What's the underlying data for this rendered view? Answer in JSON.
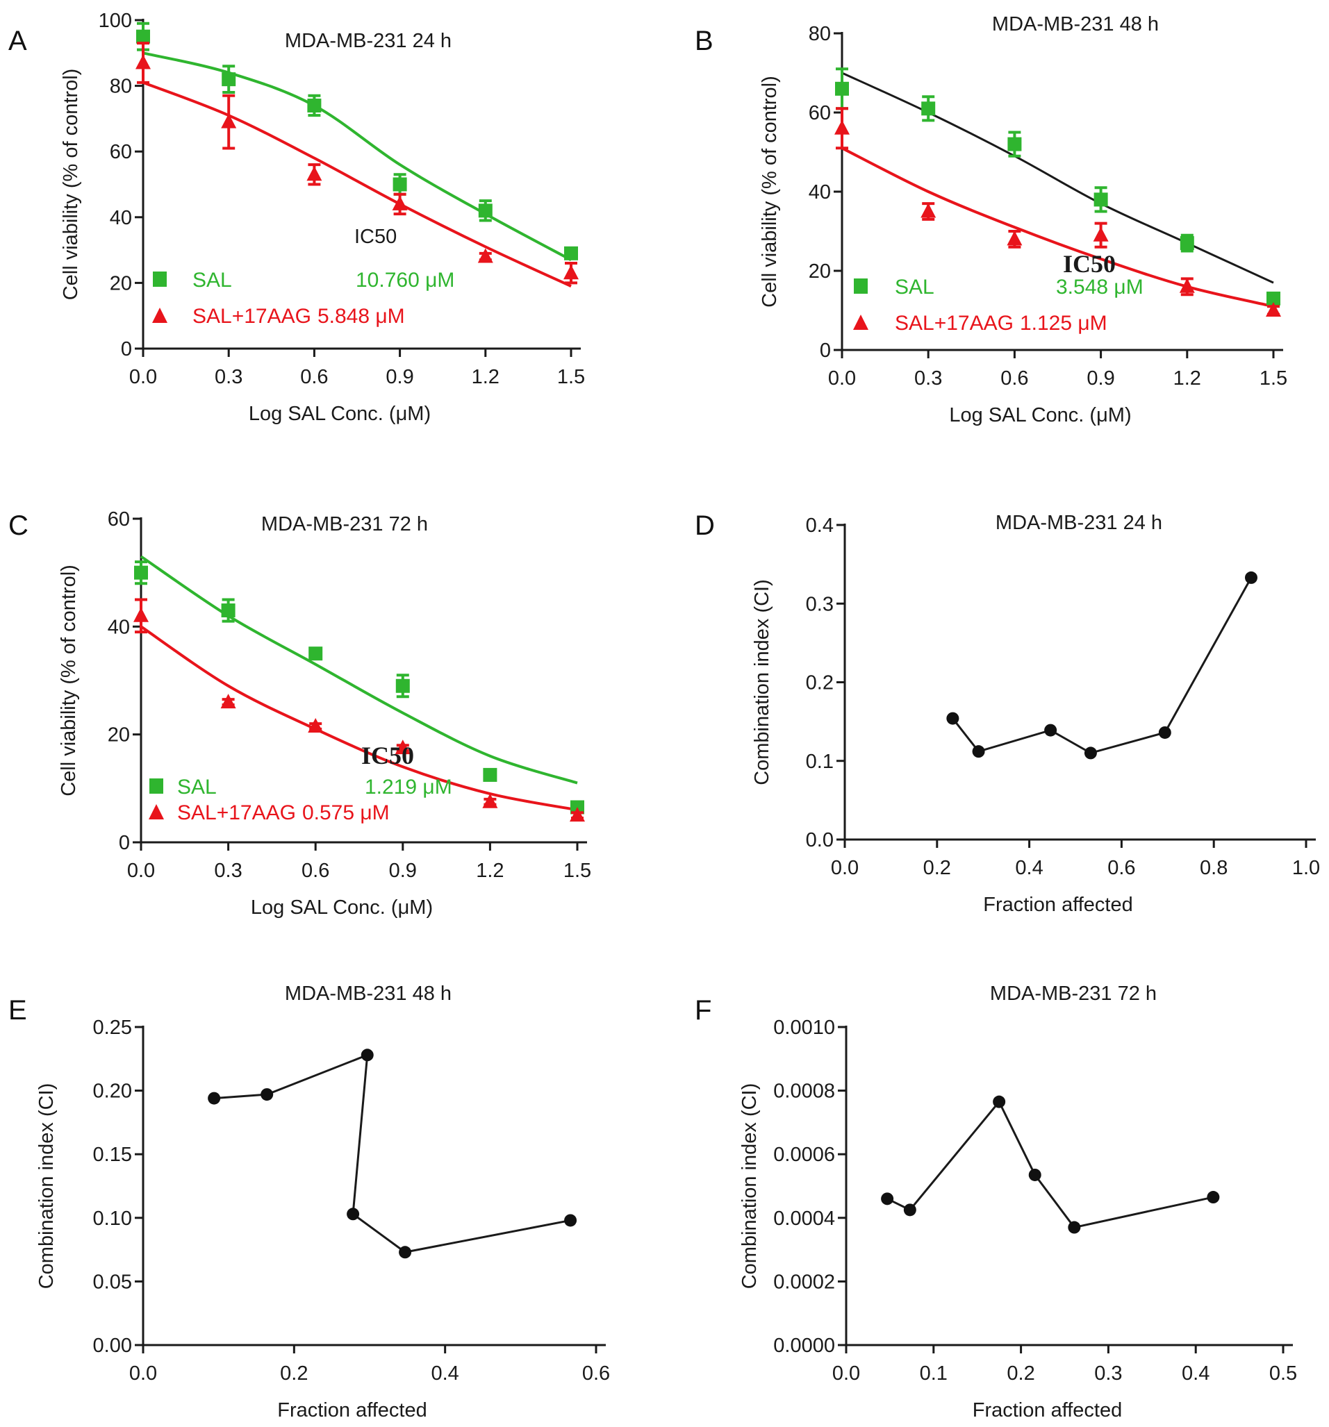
{
  "colors": {
    "sal": "#2fb52f",
    "combo": "#e8141b",
    "black": "#1a1a1a",
    "fit_black": "#222222"
  },
  "chart_data": [
    {
      "panel": "A",
      "type": "scatter",
      "title": "MDA-MB-231 24 h",
      "xlabel": "Log SAL Conc. (μM)",
      "ylabel": "Cell viability (% of control)",
      "xlim": [
        0,
        1.5
      ],
      "ylim": [
        0,
        100
      ],
      "xticks": [
        "0.0",
        "0.3",
        "0.6",
        "0.9",
        "1.2",
        "1.5"
      ],
      "yticks": [
        "0",
        "20",
        "40",
        "60",
        "80",
        "100"
      ],
      "x": [
        0.0,
        0.3,
        0.6,
        0.9,
        1.2,
        1.5
      ],
      "annotation": "IC50",
      "legend_placement": "bottom-left",
      "series": [
        {
          "name": "SAL",
          "marker": "square",
          "ic50": "10.760 μM",
          "values": [
            95,
            82,
            74,
            50,
            42,
            29
          ],
          "errors": [
            4,
            4,
            3,
            3,
            3,
            1
          ],
          "fit": [
            90,
            84,
            74,
            56,
            41,
            27
          ],
          "fit_color": "sal"
        },
        {
          "name": "SAL+17AAG",
          "marker": "triangle",
          "ic50": "5.848 μM",
          "values": [
            87,
            69,
            53,
            44,
            28,
            23
          ],
          "errors": [
            6,
            8,
            3,
            3,
            1,
            3
          ],
          "fit": [
            81,
            71,
            58,
            44,
            31,
            19
          ],
          "fit_color": "combo"
        }
      ]
    },
    {
      "panel": "B",
      "type": "scatter",
      "title": "MDA-MB-231 48 h",
      "xlabel": "Log SAL Conc. (μM)",
      "ylabel": "Cell viability (% of control)",
      "xlim": [
        0,
        1.5
      ],
      "ylim": [
        0,
        80
      ],
      "xticks": [
        "0.0",
        "0.3",
        "0.6",
        "0.9",
        "1.2",
        "1.5"
      ],
      "yticks": [
        "0",
        "20",
        "40",
        "60",
        "80"
      ],
      "x": [
        0.0,
        0.3,
        0.6,
        0.9,
        1.2,
        1.5
      ],
      "annotation": "IC50",
      "legend_placement": "bottom-left",
      "series": [
        {
          "name": "SAL",
          "marker": "square",
          "ic50": "3.548 μM",
          "values": [
            66,
            61,
            52,
            38,
            27,
            13
          ],
          "errors": [
            5,
            3,
            3,
            3,
            2,
            1
          ],
          "fit": [
            70,
            60,
            49,
            37,
            27,
            17
          ],
          "fit_color": "black"
        },
        {
          "name": "SAL+17AAG",
          "marker": "triangle",
          "ic50": "1.125 μM",
          "values": [
            56,
            35,
            28,
            29,
            16,
            10
          ],
          "errors": [
            5,
            2,
            2,
            3,
            2,
            1
          ],
          "fit": [
            51,
            40,
            31,
            23,
            16,
            11
          ],
          "fit_color": "combo"
        }
      ]
    },
    {
      "panel": "C",
      "type": "scatter",
      "title": "MDA-MB-231 72 h",
      "xlabel": "Log SAL Conc. (μM)",
      "ylabel": "Cell viability (% of control)",
      "xlim": [
        0,
        1.5
      ],
      "ylim": [
        0,
        60
      ],
      "xticks": [
        "0.0",
        "0.3",
        "0.6",
        "0.9",
        "1.2",
        "1.5"
      ],
      "yticks": [
        "0",
        "20",
        "40",
        "60"
      ],
      "x": [
        0.0,
        0.3,
        0.6,
        0.9,
        1.2,
        1.5
      ],
      "annotation": "IC50",
      "legend_placement": "bottom-left",
      "series": [
        {
          "name": "SAL",
          "marker": "square",
          "ic50": "1.219 μM",
          "values": [
            50,
            43,
            35,
            29,
            12.5,
            6.5
          ],
          "errors": [
            2,
            2,
            0.5,
            2,
            0.5,
            0.5
          ],
          "fit": [
            53,
            42,
            33,
            24,
            16,
            11
          ],
          "fit_color": "sal"
        },
        {
          "name": "SAL+17AAG",
          "marker": "triangle",
          "ic50": "0.575 μM",
          "values": [
            42,
            26,
            21.5,
            17.5,
            7.5,
            5
          ],
          "errors": [
            3,
            0.5,
            0.5,
            0.5,
            0.5,
            0.5
          ],
          "fit": [
            40,
            29,
            21,
            14,
            9,
            6
          ],
          "fit_color": "combo"
        }
      ]
    },
    {
      "panel": "D",
      "type": "line",
      "title": "MDA-MB-231 24 h",
      "xlabel": "Fraction affected",
      "ylabel": "Combination index (CI)",
      "xlim": [
        0,
        1.0
      ],
      "ylim": [
        0,
        0.4
      ],
      "xticks": [
        "0.0",
        "0.2",
        "0.4",
        "0.6",
        "0.8",
        "1.0"
      ],
      "yticks": [
        "0.0",
        "0.1",
        "0.2",
        "0.3",
        "0.4"
      ],
      "x": [
        0.234,
        0.29,
        0.446,
        0.533,
        0.694,
        0.881
      ],
      "values": [
        0.154,
        0.112,
        0.139,
        0.11,
        0.136,
        0.333
      ]
    },
    {
      "panel": "E",
      "type": "line",
      "title": "MDA-MB-231 48 h",
      "xlabel": "Fraction affected",
      "ylabel": "Combination index (CI)",
      "xlim": [
        0,
        0.6
      ],
      "ylim": [
        0,
        0.25
      ],
      "xticks": [
        "0.0",
        "0.2",
        "0.4",
        "0.6"
      ],
      "yticks": [
        "0.00",
        "0.05",
        "0.10",
        "0.15",
        "0.20",
        "0.25"
      ],
      "x": [
        0.094,
        0.164,
        0.297,
        0.278,
        0.347,
        0.566
      ],
      "values": [
        0.194,
        0.197,
        0.228,
        0.103,
        0.073,
        0.098
      ]
    },
    {
      "panel": "F",
      "type": "line",
      "title": "MDA-MB-231 72 h",
      "xlabel": "Fraction affected",
      "ylabel": "Combination index (CI)",
      "xlim": [
        0,
        0.5
      ],
      "ylim": [
        0,
        0.001
      ],
      "xticks": [
        "0.0",
        "0.1",
        "0.2",
        "0.3",
        "0.4",
        "0.5"
      ],
      "yticks": [
        "0.0000",
        "0.0002",
        "0.0004",
        "0.0006",
        "0.0008",
        "0.0010"
      ],
      "x": [
        0.047,
        0.073,
        0.175,
        0.216,
        0.261,
        0.42
      ],
      "values": [
        0.00046,
        0.000425,
        0.000765,
        0.000535,
        0.00037,
        0.000465
      ]
    }
  ]
}
